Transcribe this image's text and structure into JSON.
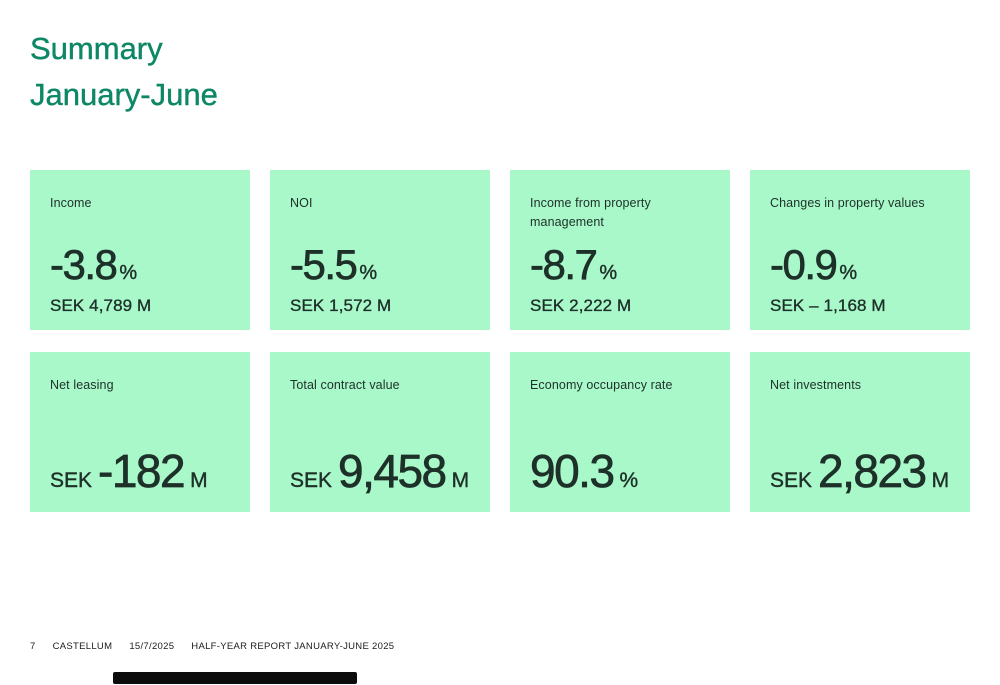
{
  "title": {
    "line1": "Summary",
    "line2": "January-June"
  },
  "colors": {
    "accent_green": "#0d8765",
    "card_background": "#a9f8c9",
    "card_text": "#1d3029",
    "bottom_bar": "#0c0c0c"
  },
  "cards": [
    {
      "label": "Income",
      "value": "-3.8",
      "unit": "%",
      "sub": "SEK 4,789 M"
    },
    {
      "label": "NOI",
      "value": "-5.5",
      "unit": "%",
      "sub": "SEK 1,572 M"
    },
    {
      "label": "Income from property management",
      "value": "-8.7",
      "unit": "%",
      "sub": "SEK 2,222 M"
    },
    {
      "label": "Changes in property values",
      "value": "-0.9",
      "unit": "%",
      "sub": "SEK – 1,168 M"
    },
    {
      "label": "Net leasing",
      "prefix": "SEK",
      "value": "-182",
      "suffix": "M"
    },
    {
      "label": "Total contract value",
      "prefix": "SEK",
      "value": "9,458",
      "suffix": "M"
    },
    {
      "label": "Economy occupancy rate",
      "value": "90.3",
      "suffix": "%"
    },
    {
      "label": "Net investments",
      "prefix": "SEK",
      "value": "2,823",
      "suffix": "M"
    }
  ],
  "footer": {
    "page_number": "7",
    "company": "CASTELLUM",
    "date": "15/7/2025",
    "report_title": "HALF-YEAR REPORT JANUARY-JUNE 2025"
  }
}
